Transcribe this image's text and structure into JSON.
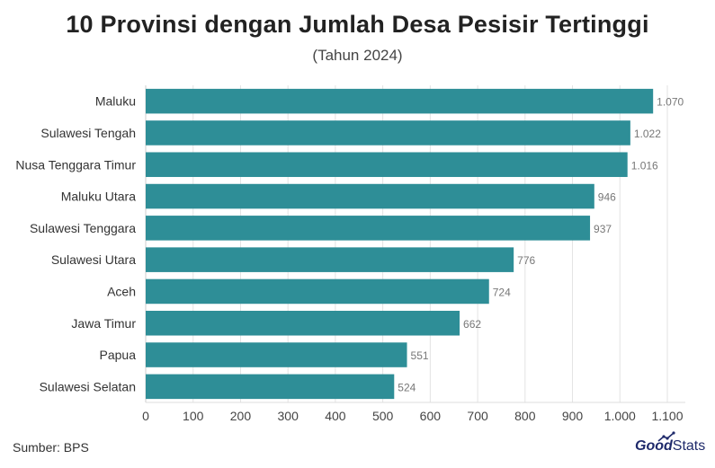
{
  "title": "10 Provinsi dengan Jumlah Desa Pesisir Tertinggi",
  "subtitle": "(Tahun 2024)",
  "source": "Sumber: BPS",
  "brand": {
    "part1": "Good",
    "part2": "Stats"
  },
  "colors": {
    "bar": "#2e8e97",
    "grid": "#e3e3e3",
    "value_label": "#777777",
    "brand": "#1f2a6b"
  },
  "chart_data": {
    "type": "bar",
    "orientation": "horizontal",
    "categories": [
      "Maluku",
      "Sulawesi Tengah",
      "Nusa Tenggara Timur",
      "Maluku Utara",
      "Sulawesi Tenggara",
      "Sulawesi Utara",
      "Aceh",
      "Jawa Timur",
      "Papua",
      "Sulawesi Selatan"
    ],
    "values": [
      1070,
      1022,
      1016,
      946,
      937,
      776,
      724,
      662,
      551,
      524
    ],
    "value_labels": [
      "1.070",
      "1.022",
      "1.016",
      "946",
      "937",
      "776",
      "724",
      "662",
      "551",
      "524"
    ],
    "xlim": [
      0,
      1100
    ],
    "xticks": [
      0,
      100,
      200,
      300,
      400,
      500,
      600,
      700,
      800,
      900,
      1000,
      1100
    ],
    "xtick_labels": [
      "0",
      "100",
      "200",
      "300",
      "400",
      "500",
      "600",
      "700",
      "800",
      "900",
      "1.000",
      "1.100"
    ],
    "grid": true
  }
}
